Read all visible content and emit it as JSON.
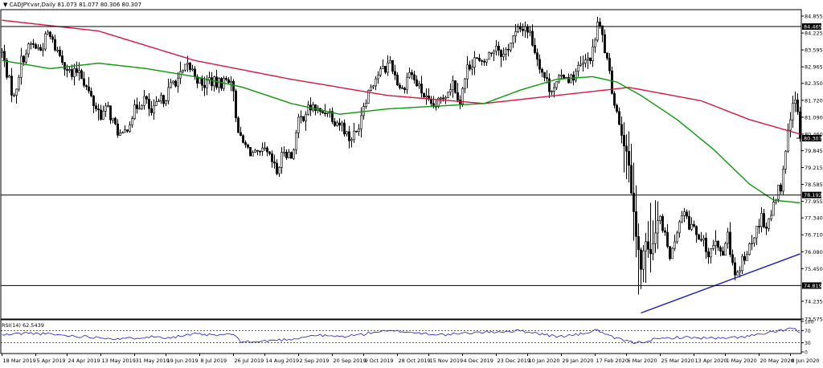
{
  "chart_data": {
    "type": "candlestick",
    "symbol": "CADJPY.var,Daily",
    "ohlc_text": "81.073 81.077 80.306 80.307",
    "colors": {
      "candle": "#000000",
      "ma_red": "#dc143c",
      "ma_green": "#0a9a0a",
      "trendline": "#1a1acd",
      "level_label_bg": "#000000",
      "level_label_fg": "#ffffff",
      "grid": "#000000"
    },
    "y_axis": {
      "min": 73.575,
      "max": 85.095,
      "ticks": [
        84.855,
        84.225,
        83.595,
        82.965,
        82.35,
        81.72,
        81.09,
        80.46,
        79.845,
        79.215,
        78.585,
        77.955,
        77.34,
        76.71,
        76.08,
        75.45,
        74.235,
        73.575
      ]
    },
    "x_axis": {
      "count": 320,
      "labels": [
        {
          "i": 0,
          "text": "18 Mar 2019"
        },
        {
          "i": 14,
          "text": "5 Apr 2019"
        },
        {
          "i": 27,
          "text": "24 Apr 2019"
        },
        {
          "i": 41,
          "text": "13 May 2019"
        },
        {
          "i": 55,
          "text": "31 May 2019"
        },
        {
          "i": 68,
          "text": "19 Jun 2019"
        },
        {
          "i": 82,
          "text": "8 Jul 2019"
        },
        {
          "i": 96,
          "text": "26 Jul 2019"
        },
        {
          "i": 109,
          "text": "14 Aug 2019"
        },
        {
          "i": 123,
          "text": "2 Sep 2019"
        },
        {
          "i": 137,
          "text": "20 Sep 2019"
        },
        {
          "i": 150,
          "text": "9 Oct 2019"
        },
        {
          "i": 164,
          "text": "28 Oct 2019"
        },
        {
          "i": 177,
          "text": "15 Nov 2019"
        },
        {
          "i": 191,
          "text": "4 Dec 2019"
        },
        {
          "i": 205,
          "text": "23 Dec 2019"
        },
        {
          "i": 218,
          "text": "10 Jan 2020"
        },
        {
          "i": 232,
          "text": "29 Jan 2020"
        },
        {
          "i": 246,
          "text": "17 Feb 2020"
        },
        {
          "i": 259,
          "text": "6 Mar 2020"
        },
        {
          "i": 273,
          "text": "25 Mar 2020"
        },
        {
          "i": 287,
          "text": "13 Apr 2020"
        },
        {
          "i": 300,
          "text": "1 May 2020"
        },
        {
          "i": 314,
          "text": "20 May 2020"
        },
        {
          "i": 327,
          "text": "8 Jun 2020"
        }
      ]
    },
    "levels": [
      {
        "value": 84.465,
        "label": "84.465"
      },
      {
        "value": 78.192,
        "label": "78.192"
      },
      {
        "value": 74.819,
        "label": "74.819"
      }
    ],
    "current_price": {
      "value": 80.307,
      "label": "80.307"
    },
    "price_anchors": [
      [
        0,
        83.5
      ],
      [
        3,
        82.4
      ],
      [
        5,
        81.8
      ],
      [
        8,
        83.2
      ],
      [
        12,
        83.8
      ],
      [
        16,
        83.6
      ],
      [
        19,
        84.2
      ],
      [
        22,
        83.7
      ],
      [
        26,
        83.1
      ],
      [
        29,
        82.6
      ],
      [
        32,
        82.9
      ],
      [
        35,
        82.2
      ],
      [
        38,
        81.6
      ],
      [
        41,
        81.2
      ],
      [
        44,
        81.4
      ],
      [
        47,
        80.7
      ],
      [
        50,
        80.3
      ],
      [
        53,
        81.0
      ],
      [
        56,
        81.5
      ],
      [
        59,
        81.8
      ],
      [
        62,
        81.2
      ],
      [
        65,
        81.6
      ],
      [
        68,
        81.9
      ],
      [
        71,
        82.4
      ],
      [
        74,
        82.6
      ],
      [
        77,
        83.0
      ],
      [
        80,
        82.7
      ],
      [
        83,
        82.2
      ],
      [
        86,
        82.5
      ],
      [
        89,
        82.3
      ],
      [
        92,
        82.4
      ],
      [
        95,
        82.6
      ],
      [
        97,
        81.2
      ],
      [
        99,
        80.2
      ],
      [
        102,
        79.9
      ],
      [
        106,
        79.6
      ],
      [
        109,
        79.8
      ],
      [
        112,
        79.4
      ],
      [
        114,
        79.0
      ],
      [
        117,
        79.9
      ],
      [
        120,
        79.6
      ],
      [
        123,
        80.9
      ],
      [
        126,
        81.3
      ],
      [
        129,
        81.5
      ],
      [
        132,
        81.2
      ],
      [
        135,
        81.4
      ],
      [
        138,
        81.0
      ],
      [
        141,
        80.8
      ],
      [
        144,
        80.3
      ],
      [
        147,
        80.5
      ],
      [
        150,
        81.6
      ],
      [
        153,
        82.3
      ],
      [
        156,
        82.7
      ],
      [
        159,
        82.9
      ],
      [
        161,
        83.2
      ],
      [
        164,
        82.4
      ],
      [
        166,
        82.1
      ],
      [
        169,
        82.8
      ],
      [
        172,
        82.3
      ],
      [
        175,
        81.9
      ],
      [
        178,
        81.4
      ],
      [
        181,
        81.6
      ],
      [
        184,
        82.0
      ],
      [
        187,
        82.4
      ],
      [
        190,
        81.7
      ],
      [
        193,
        82.9
      ],
      [
        196,
        83.3
      ],
      [
        199,
        83.0
      ],
      [
        202,
        83.4
      ],
      [
        205,
        83.8
      ],
      [
        208,
        83.4
      ],
      [
        211,
        83.9
      ],
      [
        214,
        84.3
      ],
      [
        217,
        84.5
      ],
      [
        219,
        84.2
      ],
      [
        221,
        83.6
      ],
      [
        224,
        82.8
      ],
      [
        227,
        82.2
      ],
      [
        230,
        82.3
      ],
      [
        233,
        82.7
      ],
      [
        236,
        82.5
      ],
      [
        239,
        82.9
      ],
      [
        242,
        83.1
      ],
      [
        245,
        83.5
      ],
      [
        247,
        84.6
      ],
      [
        249,
        84.1
      ],
      [
        251,
        83.1
      ],
      [
        253,
        82.1
      ],
      [
        255,
        81.3
      ],
      [
        257,
        80.6
      ],
      [
        259,
        79.8
      ],
      [
        261,
        78.4
      ],
      [
        263,
        76.7
      ],
      [
        265,
        75.6
      ],
      [
        267,
        76.4
      ],
      [
        269,
        76.0
      ],
      [
        271,
        76.9
      ],
      [
        273,
        77.3
      ],
      [
        275,
        76.6
      ],
      [
        277,
        76.0
      ],
      [
        279,
        76.6
      ],
      [
        281,
        77.2
      ],
      [
        283,
        77.6
      ],
      [
        285,
        77.0
      ],
      [
        287,
        76.8
      ],
      [
        289,
        76.4
      ],
      [
        291,
        76.6
      ],
      [
        293,
        76.0
      ],
      [
        295,
        76.5
      ],
      [
        297,
        76.1
      ],
      [
        299,
        75.9
      ],
      [
        301,
        76.7
      ],
      [
        303,
        75.5
      ],
      [
        305,
        75.1
      ],
      [
        307,
        75.7
      ],
      [
        309,
        76.1
      ],
      [
        311,
        76.4
      ],
      [
        313,
        76.9
      ],
      [
        315,
        77.3
      ],
      [
        317,
        77.0
      ],
      [
        319,
        77.6
      ],
      [
        321,
        78.1
      ],
      [
        322,
        78.4
      ],
      [
        323,
        78.3
      ],
      [
        324,
        79.0
      ],
      [
        325,
        79.8
      ],
      [
        326,
        80.5
      ],
      [
        327,
        81.2
      ],
      [
        328,
        81.5
      ],
      [
        329,
        81.7
      ],
      [
        330,
        81.1
      ],
      [
        331,
        80.3
      ]
    ],
    "ma_red_anchors": [
      [
        0,
        84.7
      ],
      [
        40,
        84.3
      ],
      [
        80,
        83.2
      ],
      [
        120,
        82.5
      ],
      [
        160,
        81.9
      ],
      [
        200,
        81.6
      ],
      [
        240,
        82.0
      ],
      [
        260,
        82.2
      ],
      [
        290,
        81.7
      ],
      [
        310,
        81.0
      ],
      [
        331,
        80.46
      ]
    ],
    "ma_green_anchors": [
      [
        0,
        83.2
      ],
      [
        20,
        82.9
      ],
      [
        40,
        83.1
      ],
      [
        60,
        82.9
      ],
      [
        80,
        82.6
      ],
      [
        100,
        82.2
      ],
      [
        120,
        81.6
      ],
      [
        140,
        81.2
      ],
      [
        160,
        81.4
      ],
      [
        180,
        81.5
      ],
      [
        200,
        81.6
      ],
      [
        215,
        82.1
      ],
      [
        230,
        82.5
      ],
      [
        245,
        82.6
      ],
      [
        255,
        82.4
      ],
      [
        265,
        81.9
      ],
      [
        280,
        81.0
      ],
      [
        295,
        79.9
      ],
      [
        310,
        78.6
      ],
      [
        320,
        78.0
      ],
      [
        331,
        77.9
      ]
    ],
    "trendline": {
      "x1": 265,
      "y1": 73.8,
      "x2": 331,
      "y2": 76.0
    },
    "rsi": {
      "label": "RSI(14) 62.5439",
      "ticks": [
        100,
        70,
        30,
        0
      ],
      "levels": [
        70,
        30
      ],
      "anchors": [
        [
          0,
          55
        ],
        [
          10,
          62
        ],
        [
          20,
          58
        ],
        [
          30,
          52
        ],
        [
          40,
          48
        ],
        [
          50,
          42
        ],
        [
          60,
          50
        ],
        [
          70,
          48
        ],
        [
          80,
          58
        ],
        [
          90,
          54
        ],
        [
          95,
          60
        ],
        [
          99,
          35
        ],
        [
          105,
          32
        ],
        [
          112,
          38
        ],
        [
          120,
          42
        ],
        [
          130,
          55
        ],
        [
          140,
          50
        ],
        [
          150,
          58
        ],
        [
          155,
          66
        ],
        [
          165,
          68
        ],
        [
          175,
          60
        ],
        [
          185,
          56
        ],
        [
          195,
          63
        ],
        [
          205,
          66
        ],
        [
          215,
          69
        ],
        [
          220,
          64
        ],
        [
          230,
          50
        ],
        [
          240,
          58
        ],
        [
          247,
          72
        ],
        [
          252,
          50
        ],
        [
          257,
          40
        ],
        [
          262,
          30
        ],
        [
          266,
          34
        ],
        [
          270,
          40
        ],
        [
          280,
          48
        ],
        [
          290,
          46
        ],
        [
          300,
          44
        ],
        [
          310,
          52
        ],
        [
          320,
          64
        ],
        [
          325,
          74
        ],
        [
          328,
          78
        ],
        [
          331,
          62.5
        ]
      ]
    }
  }
}
